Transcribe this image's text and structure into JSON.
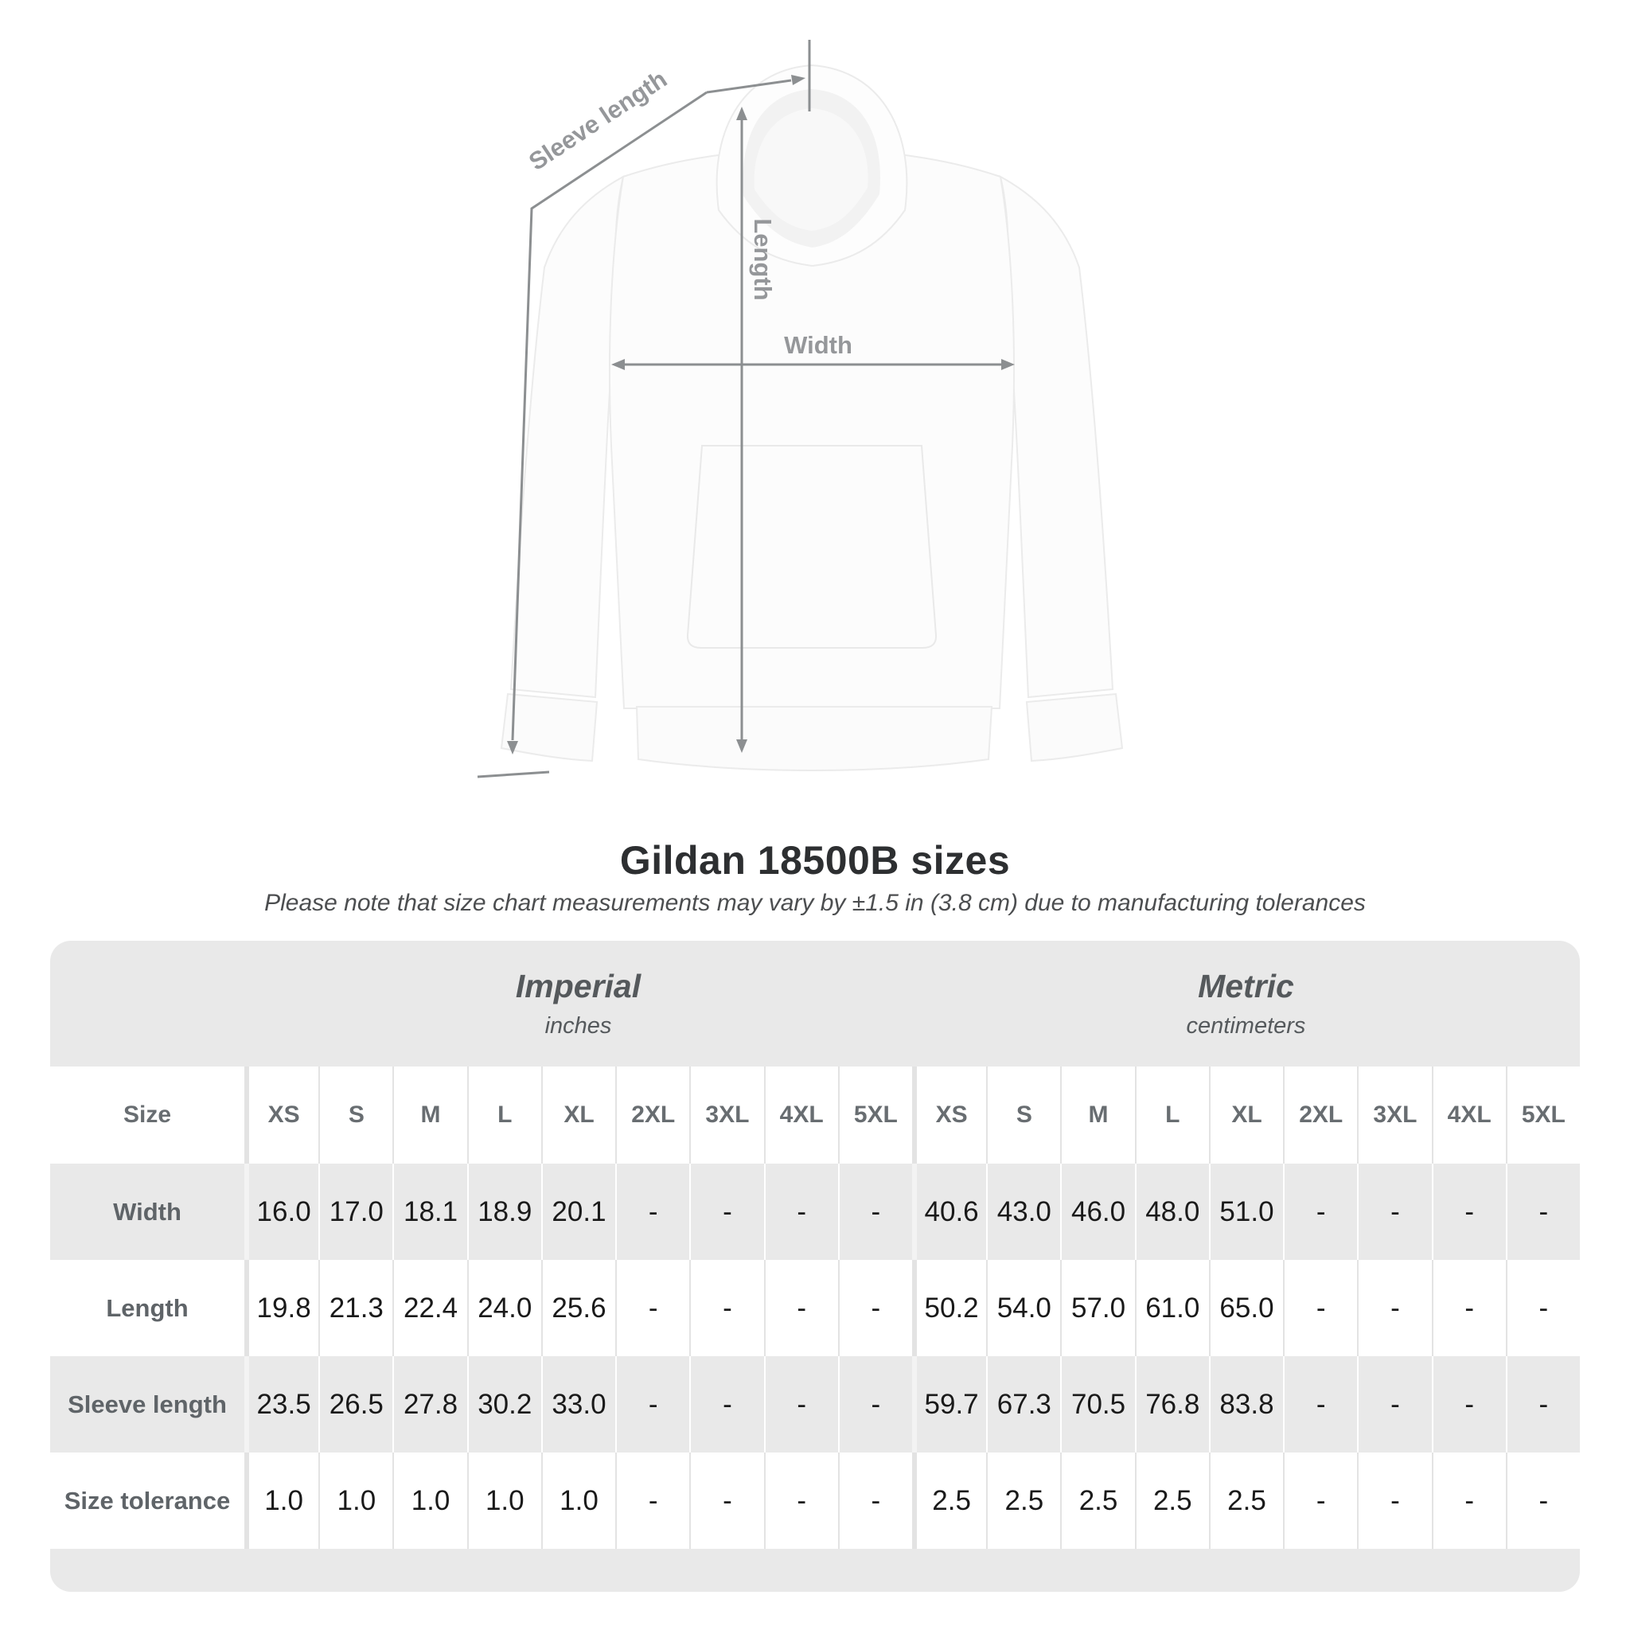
{
  "diagram": {
    "labels": {
      "sleeve_length": "Sleeve length",
      "length": "Length",
      "width": "Width"
    },
    "arrow_color": "#8c8f91",
    "label_color": "#95979a"
  },
  "title": "Gildan 18500B sizes",
  "subtitle": "Please note that size chart measurements may vary by ±1.5 in (3.8 cm) due to manufacturing tolerances",
  "table": {
    "groups": [
      {
        "label": "Imperial",
        "sublabel": "inches"
      },
      {
        "label": "Metric",
        "sublabel": "centimeters"
      }
    ],
    "size_header": "Size",
    "sizes": [
      "XS",
      "S",
      "M",
      "L",
      "XL",
      "2XL",
      "3XL",
      "4XL",
      "5XL"
    ],
    "rows": [
      {
        "label": "Width",
        "imperial": [
          "16.0",
          "17.0",
          "18.1",
          "18.9",
          "20.1",
          "-",
          "-",
          "-",
          "-"
        ],
        "metric": [
          "40.6",
          "43.0",
          "46.0",
          "48.0",
          "51.0",
          "-",
          "-",
          "-",
          "-"
        ]
      },
      {
        "label": "Length",
        "imperial": [
          "19.8",
          "21.3",
          "22.4",
          "24.0",
          "25.6",
          "-",
          "-",
          "-",
          "-"
        ],
        "metric": [
          "50.2",
          "54.0",
          "57.0",
          "61.0",
          "65.0",
          "-",
          "-",
          "-",
          "-"
        ]
      },
      {
        "label": "Sleeve length",
        "imperial": [
          "23.5",
          "26.5",
          "27.8",
          "30.2",
          "33.0",
          "-",
          "-",
          "-",
          "-"
        ],
        "metric": [
          "59.7",
          "67.3",
          "70.5",
          "76.8",
          "83.8",
          "-",
          "-",
          "-",
          "-"
        ]
      },
      {
        "label": "Size tolerance",
        "imperial": [
          "1.0",
          "1.0",
          "1.0",
          "1.0",
          "1.0",
          "-",
          "-",
          "-",
          "-"
        ],
        "metric": [
          "2.5",
          "2.5",
          "2.5",
          "2.5",
          "2.5",
          "-",
          "-",
          "-",
          "-"
        ]
      }
    ]
  },
  "colors": {
    "band_gray": "#e9e9e9",
    "value_text": "#1a1a1a",
    "header_text": "#686d71",
    "title_text": "#2d2f31"
  }
}
